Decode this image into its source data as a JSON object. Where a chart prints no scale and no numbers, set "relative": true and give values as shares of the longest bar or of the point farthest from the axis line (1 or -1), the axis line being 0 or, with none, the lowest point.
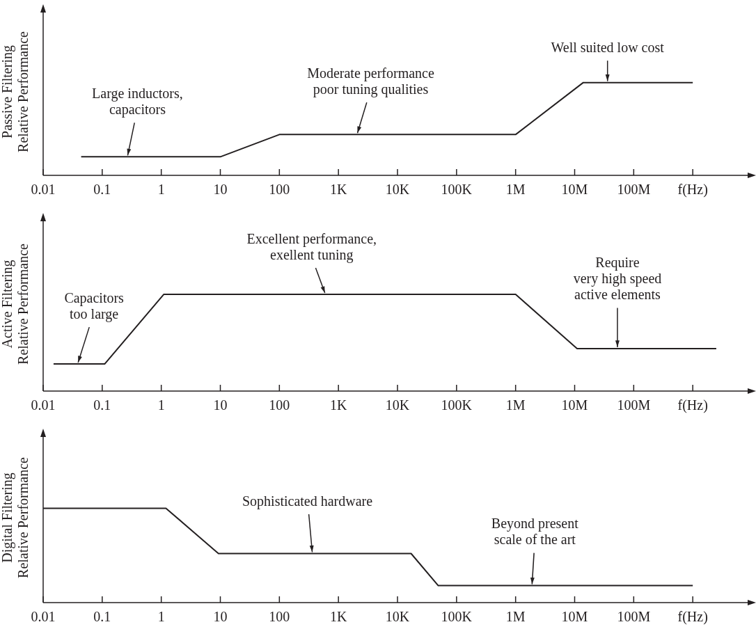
{
  "chart_data": [
    {
      "type": "line",
      "ylabel": "Passive Filtering\nRelative Performance",
      "relative": true,
      "log": "x",
      "marker": "none",
      "xlim": [
        0.01,
        10000000000
      ],
      "xticks": [
        0.01,
        0.1,
        1,
        10,
        100,
        {
          "value": 1000,
          "label": "1K"
        },
        {
          "value": 10000,
          "label": "10K"
        },
        {
          "value": 100000,
          "label": "100K"
        },
        {
          "value": 1000000,
          "label": "1M"
        },
        {
          "value": 10000000,
          "label": "10M"
        },
        {
          "value": 100000000,
          "label": "100M"
        },
        {
          "value": 1000000000,
          "label": "f(Hz)"
        }
      ],
      "series": [
        {
          "color": "#231f20",
          "x": [
            0.044,
            10,
            100,
            1000000,
            14000000,
            1000000000
          ],
          "values": [
            0.2,
            0.2,
            0.44,
            0.44,
            1,
            1
          ]
        }
      ],
      "annotations": [
        {
          "text": "Large inductors,\ncapacitors",
          "x": 0.27,
          "y": 0.2
        },
        {
          "text": "Moderate performance\npoor tuning qualities",
          "x": 2100,
          "y": 0.44
        },
        {
          "text": "Well suited low cost",
          "x": 36000000,
          "y": 1
        }
      ]
    },
    {
      "type": "line",
      "ylabel": "Active Filtering\nRelative Performance",
      "relative": true,
      "log": "x",
      "marker": "none",
      "xlim": [
        0.01,
        10000000000
      ],
      "xticks": [
        0.01,
        0.1,
        1,
        10,
        100,
        {
          "value": 1000,
          "label": "1K"
        },
        {
          "value": 10000,
          "label": "10K"
        },
        {
          "value": 100000,
          "label": "100K"
        },
        {
          "value": 1000000,
          "label": "1M"
        },
        {
          "value": 10000000,
          "label": "10M"
        },
        {
          "value": 100000000,
          "label": "100M"
        },
        {
          "value": 1000000000,
          "label": "f(Hz)"
        }
      ],
      "series": [
        {
          "color": "#231f20",
          "x": [
            0.015,
            0.11,
            1.1,
            1000000,
            11000000,
            2500000000
          ],
          "values": [
            0.28,
            0.28,
            1,
            1,
            0.44,
            0.44
          ]
        }
      ],
      "annotations": [
        {
          "text": "Capacitors\ntoo large",
          "x": 0.039,
          "y": 0.28
        },
        {
          "text": "Excellent performance,\nexellent tuning",
          "x": 590,
          "y": 1
        },
        {
          "text": "Require\nvery high speed\nactive elements",
          "x": 53000000,
          "y": 0.44
        }
      ]
    },
    {
      "type": "line",
      "ylabel": "Digital Filtering\nRelative Performance",
      "relative": true,
      "log": "x",
      "marker": "none",
      "xlim": [
        0.01,
        10000000000
      ],
      "xticks": [
        0.01,
        0.1,
        1,
        10,
        100,
        {
          "value": 1000,
          "label": "1K"
        },
        {
          "value": 10000,
          "label": "10K"
        },
        {
          "value": 100000,
          "label": "100K"
        },
        {
          "value": 1000000,
          "label": "1M"
        },
        {
          "value": 10000000,
          "label": "10M"
        },
        {
          "value": 100000000,
          "label": "100M"
        },
        {
          "value": 1000000000,
          "label": "f(Hz)"
        }
      ],
      "series": [
        {
          "color": "#231f20",
          "x": [
            0.01,
            1.2,
            9.3,
            17000,
            49000,
            1000000000
          ],
          "values": [
            1,
            1,
            0.52,
            0.52,
            0.18,
            0.18
          ]
        }
      ],
      "annotations": [
        {
          "text": "Sophisticated hardware",
          "x": 360,
          "y": 0.52
        },
        {
          "text": "Beyond present\nscale of the art",
          "x": 1900000,
          "y": 0.18
        }
      ]
    }
  ]
}
